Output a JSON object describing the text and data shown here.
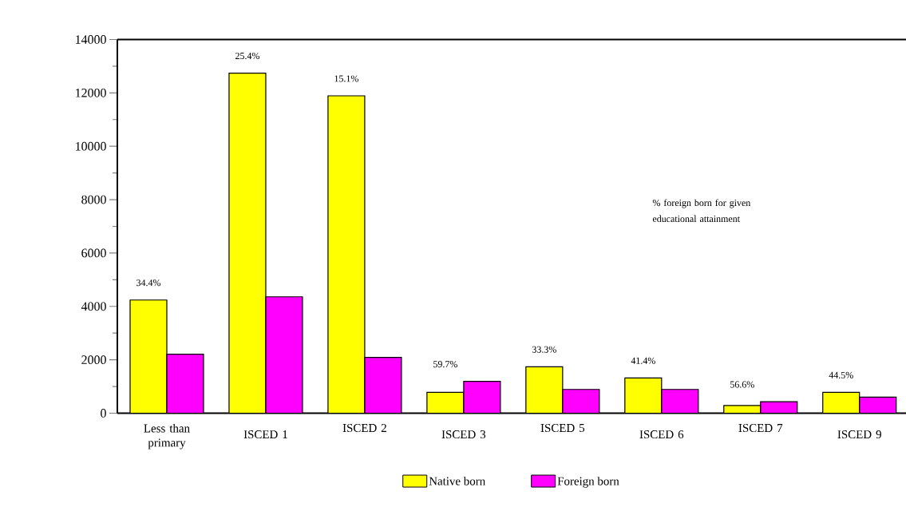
{
  "chart_data": {
    "type": "bar",
    "categories": [
      "Less than primary",
      "ISCED 1",
      "ISCED 2",
      "ISCED 3",
      "ISCED 5",
      "ISCED 6",
      "ISCED 7",
      "ISCED 9"
    ],
    "series": [
      {
        "name": "Native born",
        "color": "#ffff00",
        "values": [
          4240,
          12740,
          11890,
          780,
          1740,
          1320,
          290,
          780
        ]
      },
      {
        "name": "Foreign born",
        "color": "#ff00ff",
        "values": [
          2210,
          4360,
          2090,
          1190,
          890,
          890,
          430,
          600
        ]
      }
    ],
    "ylim": [
      0,
      14000
    ],
    "yticks": [
      0,
      2000,
      4000,
      6000,
      8000,
      10000,
      12000,
      14000
    ],
    "legend": "bottom",
    "annotations": [
      "34.4%",
      "25.4%",
      "15.1%",
      "59.7%",
      "33.3%",
      "41.4%",
      "56.6%",
      "44.5%",
      "% foreign born for given educational attainment"
    ]
  }
}
